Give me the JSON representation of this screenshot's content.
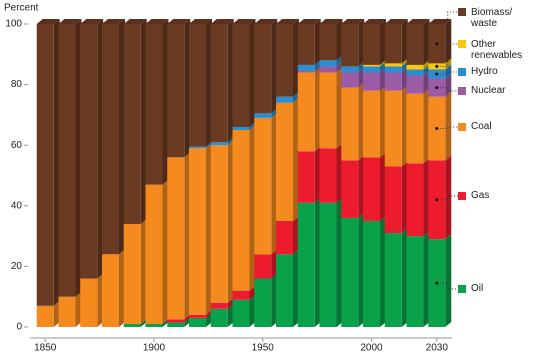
{
  "chart_data": {
    "type": "stacked-bar",
    "y_label": "Percent",
    "x": [
      1850,
      1860,
      1870,
      1880,
      1890,
      1900,
      1910,
      1920,
      1930,
      1940,
      1950,
      1960,
      1970,
      1980,
      1990,
      2000,
      2010,
      2020,
      2030
    ],
    "xlim": [
      1843,
      2037
    ],
    "xticks": [
      1850,
      1900,
      1950,
      2000,
      2030
    ],
    "ylim": [
      0,
      100
    ],
    "yticks": [
      0,
      20,
      40,
      60,
      80,
      100
    ],
    "grid": false,
    "legend": "right",
    "series": [
      {
        "name": "Oil",
        "color": "#0aa14b",
        "values": [
          0,
          0,
          0,
          0,
          1,
          1,
          1.5,
          3,
          6,
          9,
          16,
          24,
          41,
          41,
          36,
          35,
          31,
          30,
          29
        ]
      },
      {
        "name": "Gas",
        "color": "#ec1c2e",
        "values": [
          0,
          0,
          0,
          0,
          0,
          0,
          1,
          1,
          2,
          3,
          8,
          11,
          17,
          18,
          19,
          21,
          22,
          24,
          26
        ]
      },
      {
        "name": "Coal",
        "color": "#f58a1f",
        "values": [
          7,
          10,
          16,
          24,
          33,
          46,
          53.5,
          55,
          52,
          53,
          45,
          39,
          26,
          25,
          24,
          22,
          25,
          23,
          21
        ]
      },
      {
        "name": "Nuclear",
        "color": "#9b5ba5",
        "values": [
          0,
          0,
          0,
          0,
          0,
          0,
          0,
          0,
          0,
          0,
          0,
          0,
          0.5,
          2,
          5,
          6,
          6,
          6,
          6
        ]
      },
      {
        "name": "Hydro",
        "color": "#2b8fcf",
        "values": [
          0,
          0,
          0,
          0,
          0,
          0,
          0,
          0.5,
          1,
          1,
          1.5,
          2,
          2,
          2,
          2,
          2,
          2,
          2,
          3
        ]
      },
      {
        "name": "Other renewables",
        "color": "#f6c90e",
        "values": [
          0,
          0,
          0,
          0,
          0,
          0,
          0,
          0,
          0,
          0,
          0,
          0,
          0,
          0,
          0,
          0.5,
          1,
          1.5,
          2
        ]
      },
      {
        "name": "Biomass/ waste",
        "color": "#6b3a22",
        "values": [
          93,
          90,
          84,
          76,
          66,
          53,
          44,
          40.5,
          39,
          34,
          29.5,
          24,
          13.5,
          12,
          14,
          13.5,
          13,
          13.5,
          13
        ]
      }
    ]
  }
}
